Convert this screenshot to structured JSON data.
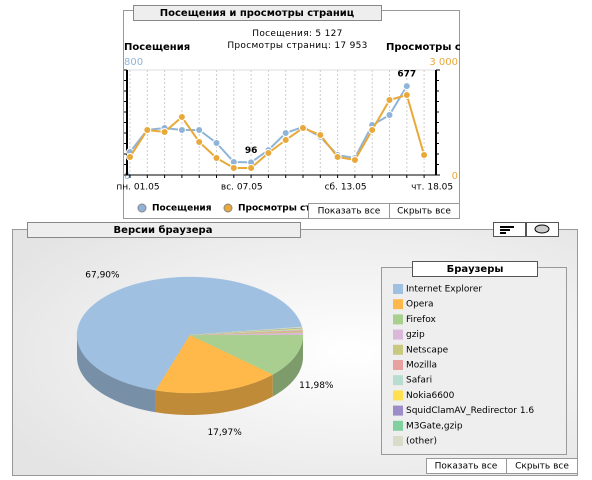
{
  "chart_data": [
    {
      "type": "line",
      "title": "Посещения и просмотры страниц",
      "subtitle": [
        "Посещения: 5 127",
        "Просмотры страниц: 17 953"
      ],
      "ylabel": "Посещения",
      "y2label": "Просмотры страниц",
      "categories": [
        "пн. 01.05",
        null,
        null,
        null,
        null,
        null,
        "вс. 07.05",
        null,
        null,
        null,
        null,
        null,
        "сб. 13.05",
        null,
        null,
        null,
        null,
        "чт. 18.05"
      ],
      "series": [
        {
          "name": "Посещения",
          "color": "#8fb4d8",
          "values": [
            175,
            343,
            358,
            343,
            343,
            244,
            99,
            96,
            190,
            320,
            366,
            290,
            152,
            130,
            381,
            457,
            677,
            null
          ],
          "value_labels": [
            null,
            null,
            null,
            null,
            null,
            null,
            null,
            "96",
            null,
            null,
            null,
            null,
            null,
            null,
            null,
            null,
            "677",
            null
          ]
        },
        {
          "name": "Просмотры страниц",
          "color": "#e8a93a",
          "axis": "y2",
          "values": [
            514,
            1286,
            1229,
            1657,
            943,
            486,
            200,
            200,
            629,
            1000,
            1343,
            1143,
            514,
            429,
            1286,
            2143,
            2286,
            571
          ]
        }
      ],
      "ylim": [
        0,
        800
      ],
      "yticks": [
        0,
        800
      ],
      "y2lim": [
        0,
        3000
      ],
      "y2ticks": [
        0,
        {
          "value": 3000,
          "label": "3 000"
        }
      ],
      "grid": true,
      "buttons": [
        "Показать все",
        "Скрыть все"
      ]
    },
    {
      "type": "pie",
      "title": "Версии браузера",
      "legend_title": "Браузеры",
      "categories": [
        "Internet Explorer",
        "Opera",
        "Firefox",
        "gzip",
        "Netscape",
        "Mozilla",
        "Safari",
        "Nokia6600",
        "SquidClamAV_Redirector 1.6",
        "M3Gate,gzip",
        "(other)"
      ],
      "values": [
        67.9,
        17.97,
        11.98,
        0.6,
        0.4,
        0.3,
        0.3,
        0.2,
        0.1,
        0.1,
        0.15
      ],
      "value_labels": [
        "67,90%",
        "17,97%",
        "11,98%",
        null,
        null,
        null,
        null,
        null,
        null,
        null,
        null
      ],
      "colors": [
        "#9fc0e0",
        "#ffb94a",
        "#a8cf90",
        "#d9b8d9",
        "#c8c880",
        "#e8a0a0",
        "#b8dcd0",
        "#ffe050",
        "#9c8cc8",
        "#80d0a0",
        "#d8dcc8"
      ],
      "buttons": [
        "Показать все",
        "Скрыть все"
      ]
    }
  ]
}
